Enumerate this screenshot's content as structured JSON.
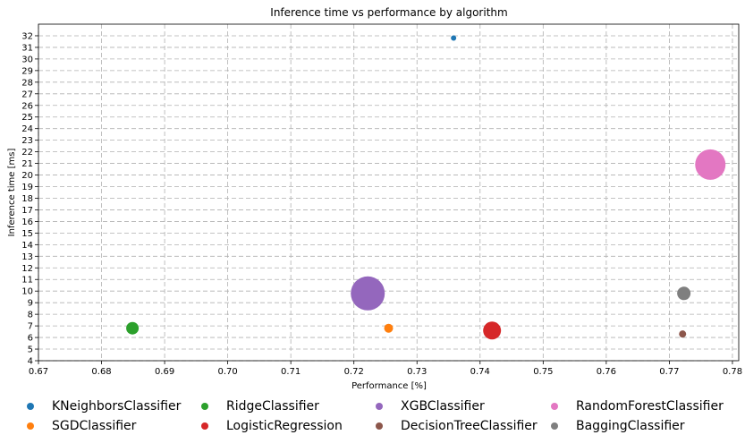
{
  "chart_data": {
    "type": "scatter",
    "title": "Inference time vs performance by algorithm",
    "xlabel": "Performance [%]",
    "ylabel": "Inference time [ms]",
    "xlim": [
      0.67,
      0.781
    ],
    "ylim": [
      4,
      33
    ],
    "xticks": [
      "0.67",
      "0.68",
      "0.69",
      "0.70",
      "0.71",
      "0.72",
      "0.73",
      "0.74",
      "0.75",
      "0.76",
      "0.77",
      "0.78"
    ],
    "yticks": [
      "4",
      "5",
      "6",
      "7",
      "8",
      "9",
      "10",
      "11",
      "12",
      "13",
      "14",
      "15",
      "16",
      "17",
      "18",
      "19",
      "20",
      "21",
      "22",
      "23",
      "24",
      "25",
      "26",
      "27",
      "28",
      "29",
      "30",
      "31",
      "32"
    ],
    "grid": true,
    "legend_position": "bottom",
    "series": [
      {
        "name": "KNeighborsClassifier",
        "color": "#1f77b4",
        "x": 0.7358,
        "y": 31.8,
        "size": 3
      },
      {
        "name": "SGDClassifier",
        "color": "#ff7f0e",
        "x": 0.7255,
        "y": 6.8,
        "size": 5
      },
      {
        "name": "RidgeClassifier",
        "color": "#2ca02c",
        "x": 0.6849,
        "y": 6.8,
        "size": 7
      },
      {
        "name": "LogisticRegression",
        "color": "#d62728",
        "x": 0.7419,
        "y": 6.6,
        "size": 10
      },
      {
        "name": "XGBClassifier",
        "color": "#9467bd",
        "x": 0.7222,
        "y": 9.8,
        "size": 19
      },
      {
        "name": "DecisionTreeClassifier",
        "color": "#8c564b",
        "x": 0.7721,
        "y": 6.3,
        "size": 4
      },
      {
        "name": "RandomForestClassifier",
        "color": "#e377c2",
        "x": 0.7765,
        "y": 20.9,
        "size": 17
      },
      {
        "name": "BaggingClassifier",
        "color": "#7f7f7f",
        "x": 0.7723,
        "y": 9.8,
        "size": 7.5
      }
    ]
  }
}
